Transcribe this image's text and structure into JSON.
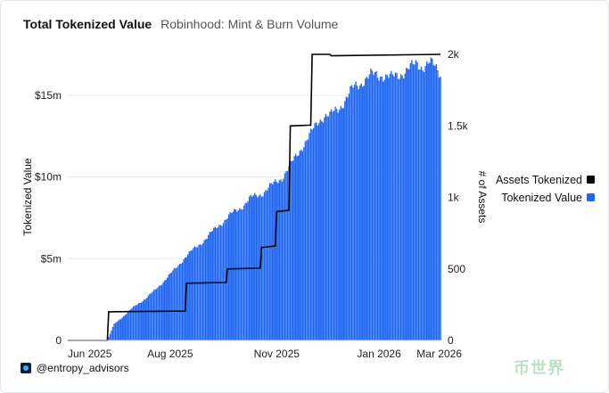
{
  "header": {
    "title": "Total Tokenized Value",
    "subtitle": "Robinhood: Mint & Burn Volume"
  },
  "footer": {
    "handle": "@entropy_advisors",
    "watermark": "币世界"
  },
  "colors": {
    "bars": "#1f66f2",
    "line": "#000000",
    "axis": "#222222",
    "grid": "#e8eaee"
  },
  "chart_data": {
    "type": "bar",
    "title": "Total Tokenized Value",
    "subtitle": "Robinhood: Mint & Burn Volume",
    "xlabel": "",
    "ylabel": "Tokenized Value",
    "y2label": "# of Assets",
    "x_ticks": [
      "Jun 2025",
      "Aug 2025",
      "Nov 2025",
      "Jan 2026",
      "Mar 2026"
    ],
    "x_range": [
      "2025-06-01",
      "2026-03-01"
    ],
    "y_ticks": [
      "0",
      "$5m",
      "$10m",
      "$15m"
    ],
    "ylim": [
      0,
      17500000
    ],
    "y2_ticks": [
      "0",
      "500",
      "1k",
      "1.5k",
      "2k"
    ],
    "y2lim": [
      0,
      2000
    ],
    "grid": true,
    "legend_position": "right",
    "legend": [
      {
        "name": "Assets Tokenized",
        "color": "#000000"
      },
      {
        "name": "Tokenized Value",
        "color": "#1f66f2"
      }
    ],
    "series": [
      {
        "name": "Tokenized Value",
        "type": "bar",
        "axis": "left",
        "x": [
          "2025-06-30",
          "2025-07-05",
          "2025-07-12",
          "2025-07-20",
          "2025-07-27",
          "2025-08-03",
          "2025-08-10",
          "2025-08-18",
          "2025-08-26",
          "2025-09-03",
          "2025-09-11",
          "2025-09-19",
          "2025-09-27",
          "2025-10-05",
          "2025-10-13",
          "2025-10-21",
          "2025-10-29",
          "2025-11-05",
          "2025-11-12",
          "2025-11-19",
          "2025-11-26",
          "2025-12-02",
          "2025-12-06",
          "2025-12-10",
          "2025-12-16",
          "2025-12-22",
          "2025-12-28",
          "2026-01-03",
          "2026-01-10",
          "2026-01-17",
          "2026-01-24",
          "2026-01-31",
          "2026-02-07",
          "2026-02-12",
          "2026-02-16",
          "2026-02-21",
          "2026-02-26",
          "2026-03-01"
        ],
        "values": [
          0,
          1000000,
          1500000,
          2100000,
          2500000,
          3000000,
          3600000,
          4300000,
          5100000,
          5700000,
          6300000,
          7000000,
          7600000,
          8100000,
          8700000,
          9000000,
          9500000,
          10000000,
          10800000,
          11800000,
          12600000,
          13500000,
          13800000,
          13700000,
          14200000,
          14800000,
          15500000,
          15900000,
          16200000,
          16300000,
          16000000,
          16400000,
          16600000,
          17000000,
          16800000,
          16900000,
          16700000,
          16400000
        ]
      },
      {
        "name": "Assets Tokenized",
        "type": "step-line",
        "axis": "right",
        "x": [
          "2025-06-01",
          "2025-06-30",
          "2025-07-01",
          "2025-08-26",
          "2025-08-27",
          "2025-09-25",
          "2025-09-26",
          "2025-10-20",
          "2025-10-21",
          "2025-10-31",
          "2025-11-01",
          "2025-11-10",
          "2025-11-11",
          "2025-11-26",
          "2025-11-27",
          "2025-12-10",
          "2025-12-11",
          "2026-03-01"
        ],
        "values": [
          0,
          0,
          200,
          205,
          400,
          405,
          500,
          505,
          650,
          660,
          900,
          910,
          1500,
          1505,
          2000,
          2000,
          1990,
          2000
        ]
      }
    ]
  }
}
